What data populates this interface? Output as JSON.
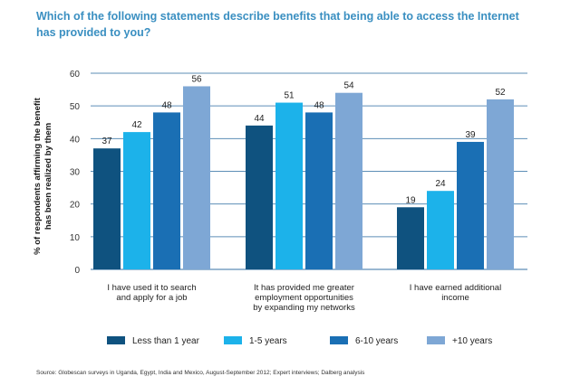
{
  "chart_data": {
    "type": "bar",
    "title_lines": [
      "Which of the following statements describe benefits that being able to access the Internet",
      "has provided to you?"
    ],
    "ylabel_lines": [
      "% of respondents affirming the benefit",
      "has been realized by them"
    ],
    "ylim": [
      0,
      60
    ],
    "yticks": [
      0,
      10,
      20,
      30,
      40,
      50,
      60
    ],
    "categories": [
      [
        "I have used it to search",
        "and apply for a job"
      ],
      [
        "It has provided me greater",
        "employment opportunities",
        "by expanding my networks"
      ],
      [
        "I have earned additional",
        "income"
      ]
    ],
    "series": [
      {
        "name": "Less than 1 year",
        "color": "#0f527f",
        "values": [
          37,
          44,
          19
        ]
      },
      {
        "name": "1-5 years",
        "color": "#1cb2ea",
        "values": [
          42,
          51,
          24
        ]
      },
      {
        "name": "6-10 years",
        "color": "#1a6fb4",
        "values": [
          48,
          48,
          39
        ]
      },
      {
        "name": "+10 years",
        "color": "#7ea7d5",
        "values": [
          56,
          54,
          52
        ]
      }
    ],
    "grid": true,
    "legend_position": "bottom",
    "source": "Source: Globescan surveys in Uganda, Egypt, India and Mexico, August-September 2012; Expert interviews; Dalberg analysis"
  },
  "colors": {
    "title": "#3a8fc1",
    "gridline": "#5d8eb6"
  }
}
